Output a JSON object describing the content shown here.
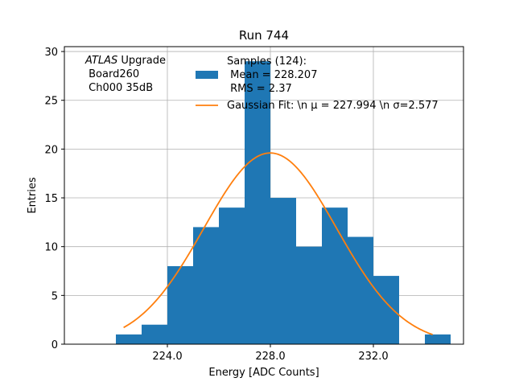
{
  "chart_data": {
    "type": "bar",
    "title": "Run 744",
    "xlabel": "Energy [ADC Counts]",
    "ylabel": "Entries",
    "xlim": [
      220.0,
      235.5
    ],
    "ylim": [
      0,
      30.5
    ],
    "grid": true,
    "xticks": [
      224.0,
      228.0,
      232.0
    ],
    "xtick_labels": [
      "224.0",
      "228.0",
      "232.0"
    ],
    "yticks": [
      0,
      5,
      10,
      15,
      20,
      25,
      30
    ],
    "ytick_labels": [
      "0",
      "5",
      "10",
      "15",
      "20",
      "25",
      "30"
    ],
    "bin_edges": [
      222.0,
      223.0,
      224.0,
      225.0,
      226.0,
      227.0,
      228.0,
      229.0,
      230.0,
      231.0,
      232.0,
      233.0,
      234.0,
      235.0
    ],
    "counts": [
      1,
      2,
      8,
      12,
      14,
      29,
      15,
      10,
      14,
      11,
      7,
      0,
      1
    ],
    "bar_color": "#1f77b4",
    "fit": {
      "mu": 227.994,
      "sigma": 2.577,
      "peak": 19.6,
      "x_range": [
        222.3,
        234.3
      ],
      "color": "#ff7f0e"
    },
    "annotation": {
      "italic": "ATLAS",
      "rest": " Upgrade",
      "line2": " Board260",
      "line3": " Ch000 35dB"
    },
    "legend": {
      "position": "top-right",
      "entries": [
        {
          "line1": "Samples (124):",
          "line2": " Mean = 228.207",
          "line3": " RMS = 2.37"
        },
        {
          "line1": "Gaussian Fit: \\n μ = 227.994 \\n σ=2.577"
        }
      ]
    }
  }
}
